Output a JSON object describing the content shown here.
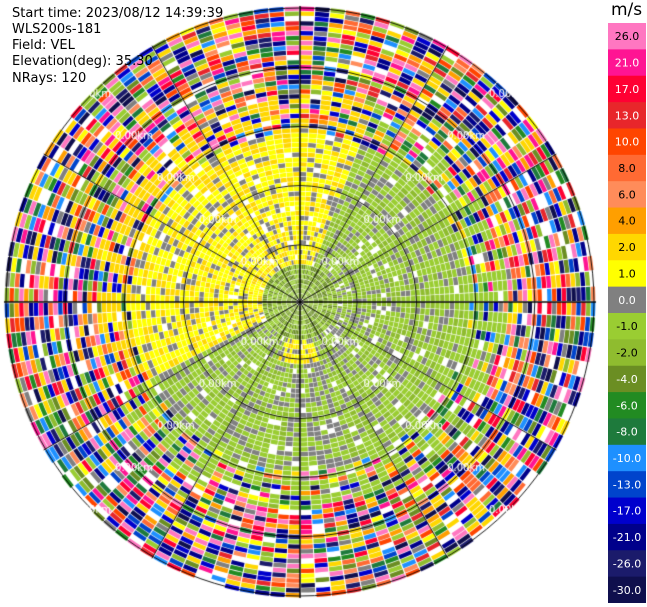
{
  "header": {
    "start_time": "Start time: 2023/08/12 14:39:39",
    "instrument": "WLS200s-181",
    "field": "Field: VEL",
    "elevation": "Elevation(deg): 35.30",
    "nrays": "NRays: 120"
  },
  "chart_data": {
    "type": "heatmap",
    "projection": "polar-ppi",
    "field": "VEL",
    "n_rays": 120,
    "range_rings_km": [
      1,
      2,
      3,
      4,
      5
    ],
    "ring_label": "0.00km",
    "colorbar": {
      "unit": "m/s",
      "tick_labels": [
        "26.0",
        "21.0",
        "17.0",
        "13.0",
        "10.0",
        "8.0",
        "6.0",
        "4.0",
        "2.0",
        "1.0",
        "0.0",
        "-1.0",
        "-2.0",
        "-4.0",
        "-6.0",
        "-8.0",
        "-10.0",
        "-13.0",
        "-17.0",
        "-21.0",
        "-26.0",
        "-30.0"
      ],
      "colors": [
        "#ff77c1",
        "#ff1493",
        "#ff0033",
        "#e8262b",
        "#ff4500",
        "#ff6a33",
        "#ff8c5a",
        "#ff9f00",
        "#ffd700",
        "#ffff00",
        "#808080",
        "#9acd32",
        "#8fbc2f",
        "#6b8e23",
        "#228b22",
        "#1e7a3c",
        "#1e90ff",
        "#0044cc",
        "#0000cd",
        "#00008b",
        "#1b1b6b",
        "#0f0f4d"
      ]
    }
  }
}
